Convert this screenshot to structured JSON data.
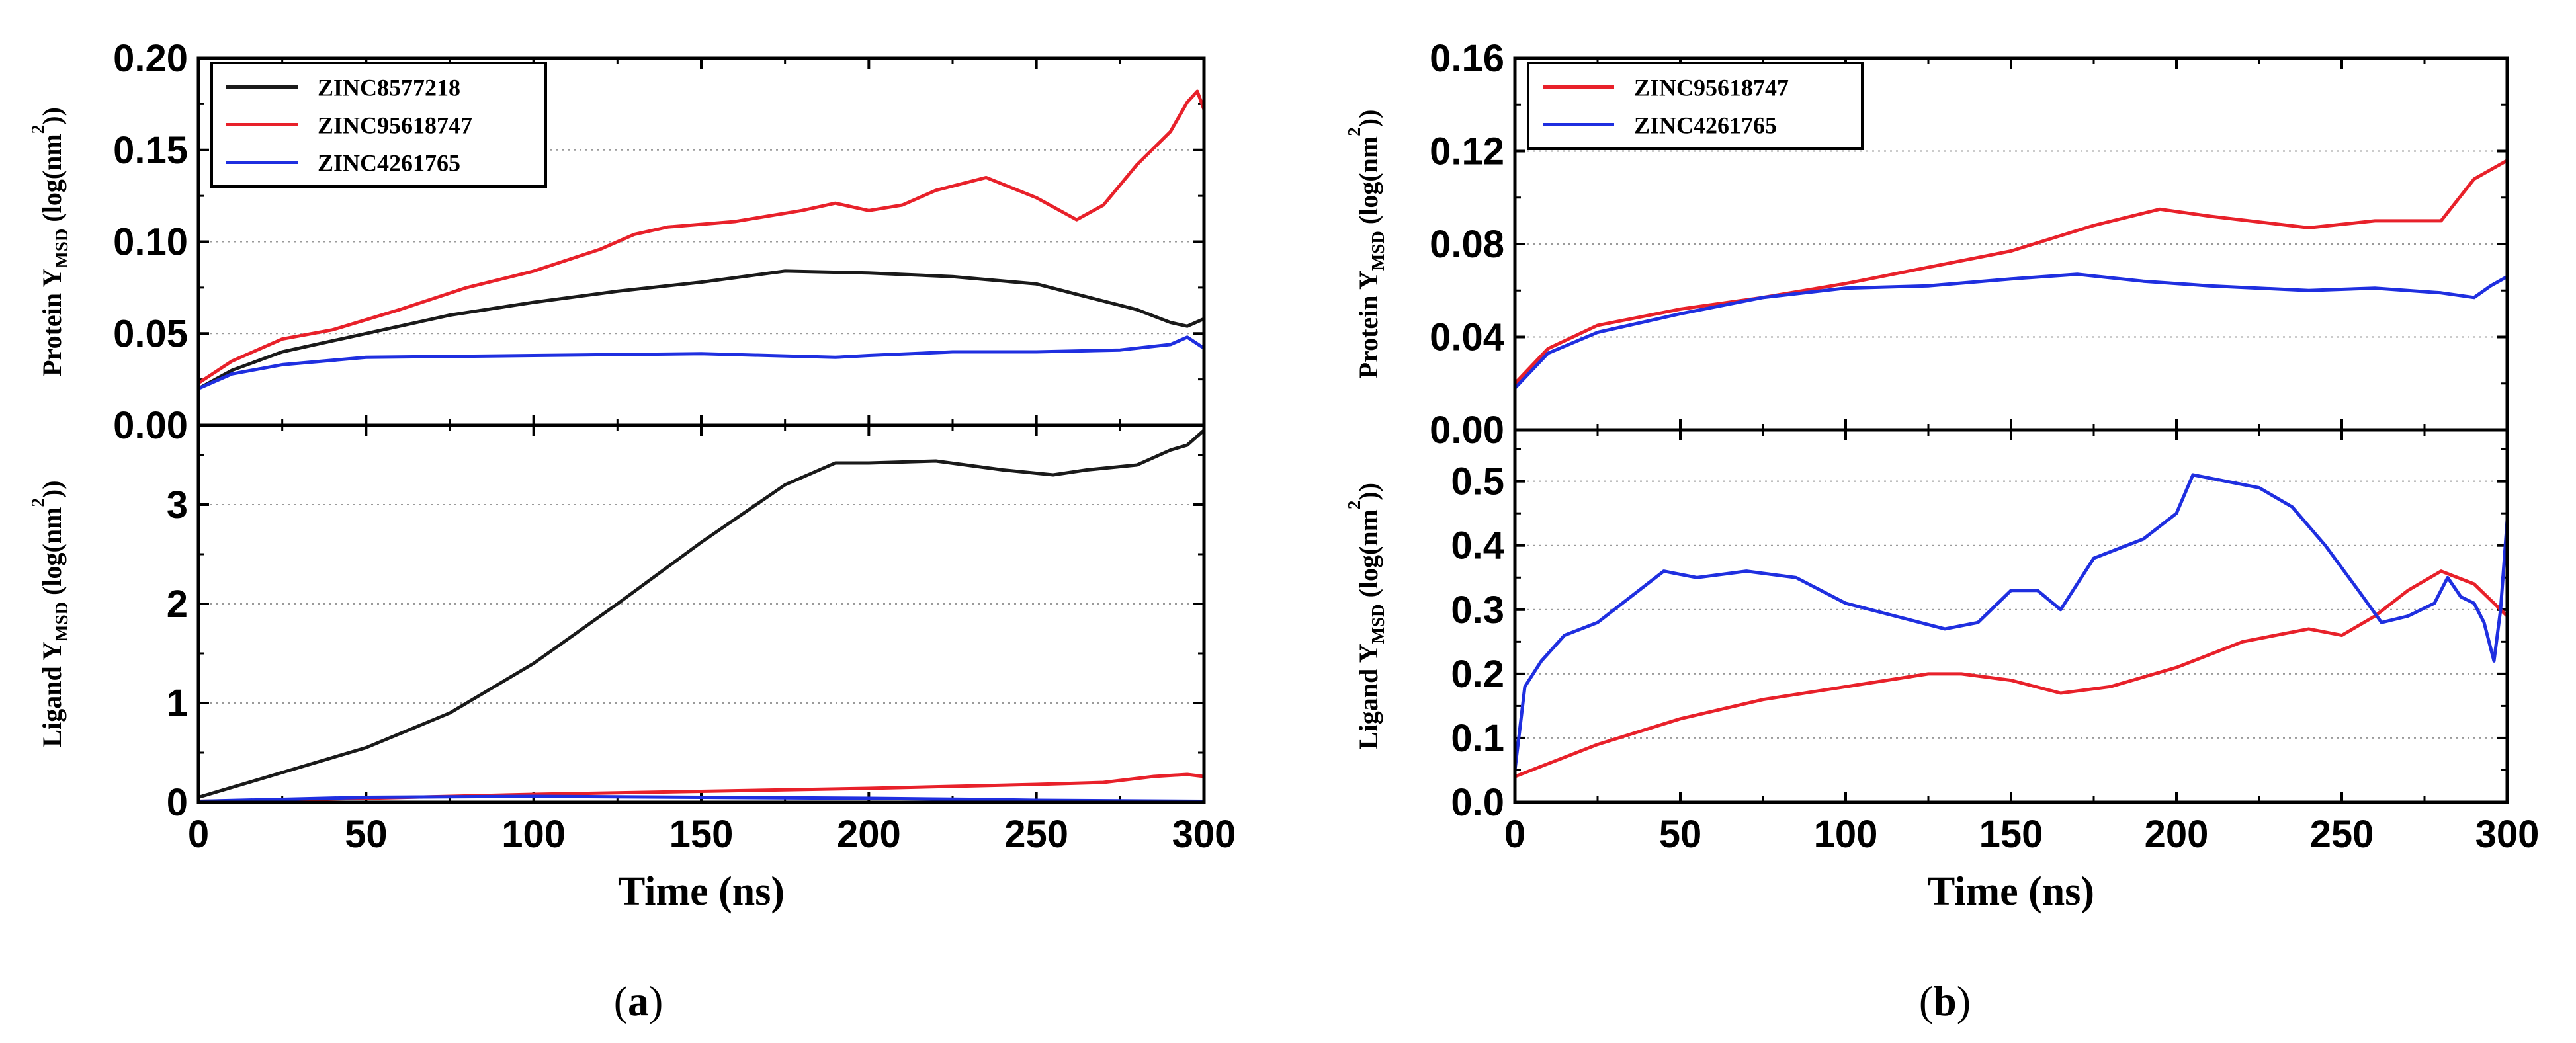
{
  "chart_data": [
    {
      "panel_label": "a",
      "type": "line",
      "xlabel": "Time (ns)",
      "xlim": [
        0,
        300
      ],
      "xticks": [
        "0",
        "50",
        "100",
        "150",
        "200",
        "250",
        "300"
      ],
      "subplots": [
        {
          "name": "protein",
          "ylabel": {
            "pre": "Protein Y",
            "sub": "MSD",
            "mid": " (log(nm",
            "sup": "2",
            "post": "))"
          },
          "ylim": [
            0,
            0.2
          ],
          "yticks": [
            "0.00",
            "0.05",
            "0.10",
            "0.15",
            "0.20"
          ],
          "grid": true,
          "legend": [
            "ZINC8577218",
            "ZINC95618747",
            "ZINC4261765"
          ],
          "series": [
            {
              "name": "ZINC8577218",
              "color": "#1a1a1a",
              "x": [
                0,
                10,
                25,
                50,
                75,
                100,
                125,
                150,
                175,
                200,
                225,
                250,
                265,
                280,
                290,
                295,
                300
              ],
              "y": [
                0.02,
                0.03,
                0.04,
                0.05,
                0.06,
                0.067,
                0.073,
                0.078,
                0.084,
                0.083,
                0.081,
                0.077,
                0.07,
                0.063,
                0.056,
                0.054,
                0.058
              ]
            },
            {
              "name": "ZINC95618747",
              "color": "#e8212a",
              "x": [
                0,
                10,
                25,
                40,
                60,
                80,
                100,
                120,
                130,
                140,
                160,
                180,
                190,
                200,
                210,
                220,
                235,
                250,
                262,
                270,
                280,
                290,
                295,
                298,
                300
              ],
              "y": [
                0.023,
                0.035,
                0.047,
                0.052,
                0.063,
                0.075,
                0.084,
                0.096,
                0.104,
                0.108,
                0.111,
                0.117,
                0.121,
                0.117,
                0.12,
                0.128,
                0.135,
                0.124,
                0.112,
                0.12,
                0.142,
                0.16,
                0.176,
                0.182,
                0.172
              ]
            },
            {
              "name": "ZINC4261765",
              "color": "#1f2fe0",
              "x": [
                0,
                10,
                25,
                50,
                100,
                150,
                190,
                200,
                225,
                250,
                275,
                290,
                295,
                300
              ],
              "y": [
                0.02,
                0.028,
                0.033,
                0.037,
                0.038,
                0.039,
                0.037,
                0.038,
                0.04,
                0.04,
                0.041,
                0.044,
                0.048,
                0.042
              ]
            }
          ]
        },
        {
          "name": "ligand",
          "ylabel": {
            "pre": "Ligand Y",
            "sub": "MSD",
            "mid": " (log(nm",
            "sup": "2",
            "post": "))"
          },
          "ylim": [
            0,
            3.8
          ],
          "yticks": [
            "0",
            "1",
            "2",
            "3"
          ],
          "grid": true,
          "series": [
            {
              "name": "ZINC8577218",
              "color": "#1a1a1a",
              "x": [
                0,
                25,
                50,
                75,
                100,
                125,
                150,
                175,
                190,
                200,
                220,
                240,
                255,
                265,
                280,
                290,
                295,
                300
              ],
              "y": [
                0.05,
                0.3,
                0.55,
                0.9,
                1.4,
                2.0,
                2.62,
                3.2,
                3.42,
                3.42,
                3.44,
                3.35,
                3.3,
                3.35,
                3.4,
                3.55,
                3.6,
                3.75
              ]
            },
            {
              "name": "ZINC95618747",
              "color": "#e8212a",
              "x": [
                0,
                50,
                100,
                150,
                200,
                250,
                270,
                285,
                295,
                300
              ],
              "y": [
                0.01,
                0.04,
                0.08,
                0.11,
                0.14,
                0.18,
                0.2,
                0.26,
                0.28,
                0.26
              ]
            },
            {
              "name": "ZINC4261765",
              "color": "#1f2fe0",
              "x": [
                0,
                50,
                100,
                150,
                200,
                230,
                250,
                300
              ],
              "y": [
                0.01,
                0.05,
                0.06,
                0.05,
                0.04,
                0.03,
                0.02,
                0.01
              ]
            }
          ]
        }
      ]
    },
    {
      "panel_label": "b",
      "type": "line",
      "xlabel": "Time (ns)",
      "xlim": [
        0,
        300
      ],
      "xticks": [
        "0",
        "50",
        "100",
        "150",
        "200",
        "250",
        "300"
      ],
      "subplots": [
        {
          "name": "protein",
          "ylabel": {
            "pre": "Protein Y",
            "sub": "MSD",
            "mid": " (log(nm",
            "sup": "2",
            "post": "))"
          },
          "ylim": [
            0,
            0.16
          ],
          "yticks": [
            "0.00",
            "0.04",
            "0.08",
            "0.12",
            "0.16"
          ],
          "grid": true,
          "legend": [
            "ZINC95618747",
            "ZINC4261765"
          ],
          "series": [
            {
              "name": "ZINC95618747",
              "color": "#e8212a",
              "x": [
                0,
                10,
                25,
                50,
                75,
                100,
                125,
                150,
                175,
                195,
                210,
                240,
                260,
                280,
                290,
                300
              ],
              "y": [
                0.02,
                0.035,
                0.045,
                0.052,
                0.057,
                0.063,
                0.07,
                0.077,
                0.088,
                0.095,
                0.092,
                0.087,
                0.09,
                0.09,
                0.108,
                0.116
              ]
            },
            {
              "name": "ZINC4261765",
              "color": "#1f2fe0",
              "x": [
                0,
                10,
                25,
                50,
                75,
                100,
                125,
                150,
                170,
                190,
                210,
                240,
                260,
                280,
                290,
                295,
                300
              ],
              "y": [
                0.018,
                0.033,
                0.042,
                0.05,
                0.057,
                0.061,
                0.062,
                0.065,
                0.067,
                0.064,
                0.062,
                0.06,
                0.061,
                0.059,
                0.057,
                0.062,
                0.066
              ]
            }
          ]
        },
        {
          "name": "ligand",
          "ylabel": {
            "pre": "Ligand Y",
            "sub": "MSD",
            "mid": " (log(nm",
            "sup": "2",
            "post": "))"
          },
          "ylim": [
            0,
            0.58
          ],
          "yticks": [
            "0.0",
            "0.1",
            "0.2",
            "0.3",
            "0.4",
            "0.5"
          ],
          "grid": true,
          "series": [
            {
              "name": "ZINC95618747",
              "color": "#e8212a",
              "x": [
                0,
                25,
                50,
                75,
                100,
                125,
                135,
                150,
                165,
                180,
                200,
                220,
                240,
                250,
                260,
                270,
                280,
                290,
                300
              ],
              "y": [
                0.04,
                0.09,
                0.13,
                0.16,
                0.18,
                0.2,
                0.2,
                0.19,
                0.17,
                0.18,
                0.21,
                0.25,
                0.27,
                0.26,
                0.29,
                0.33,
                0.36,
                0.34,
                0.29
              ]
            },
            {
              "name": "ZINC4261765",
              "color": "#1f2fe0",
              "x": [
                0,
                3,
                8,
                15,
                25,
                35,
                45,
                55,
                70,
                85,
                100,
                115,
                130,
                140,
                150,
                158,
                165,
                175,
                190,
                200,
                205,
                215,
                225,
                235,
                245,
                255,
                262,
                270,
                278,
                282,
                286,
                290,
                293,
                296,
                298,
                300
              ],
              "y": [
                0.05,
                0.18,
                0.22,
                0.26,
                0.28,
                0.32,
                0.36,
                0.35,
                0.36,
                0.35,
                0.31,
                0.29,
                0.27,
                0.28,
                0.33,
                0.33,
                0.3,
                0.38,
                0.41,
                0.45,
                0.51,
                0.5,
                0.49,
                0.46,
                0.4,
                0.33,
                0.28,
                0.29,
                0.31,
                0.35,
                0.32,
                0.31,
                0.28,
                0.22,
                0.3,
                0.44
              ]
            }
          ]
        }
      ]
    }
  ]
}
